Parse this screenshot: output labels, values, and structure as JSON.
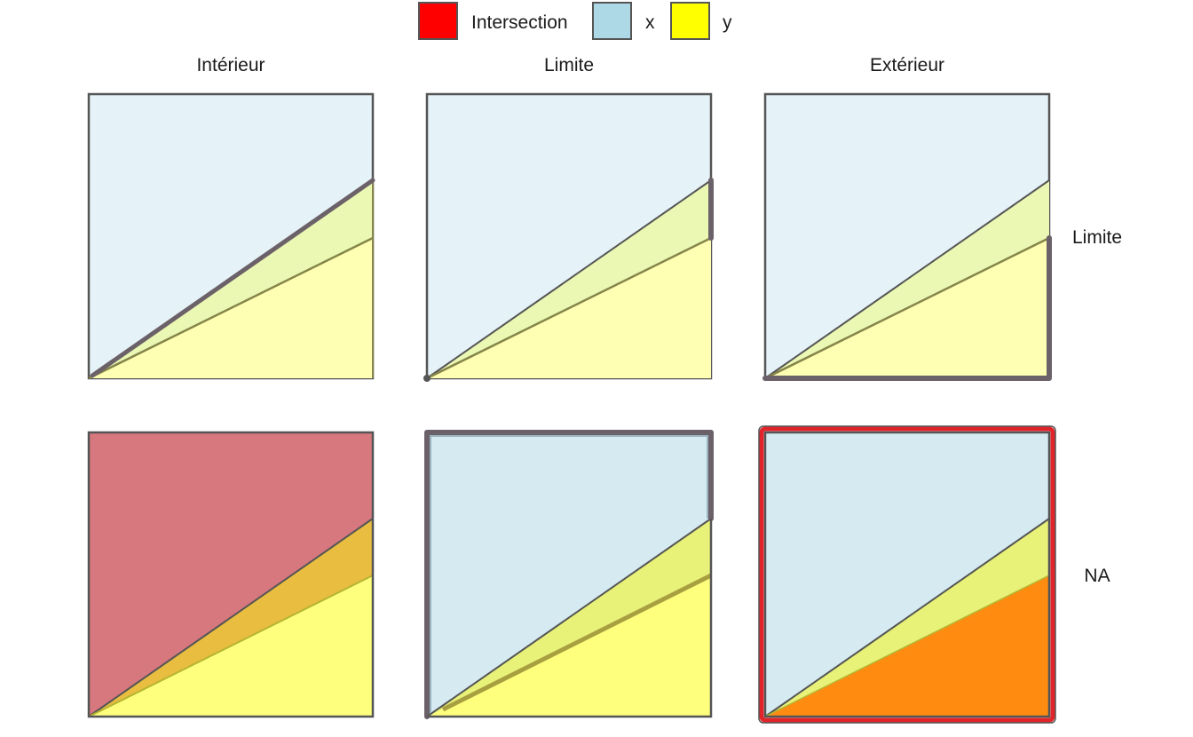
{
  "legend": {
    "items": [
      {
        "label": "Intersection",
        "color": "#FF0000"
      },
      {
        "label": "x",
        "color": "#ADD8E6"
      },
      {
        "label": "y",
        "color": "#FFFF00"
      }
    ]
  },
  "columns": [
    "Intérieur",
    "Limite",
    "Extérieur"
  ],
  "rows": [
    "Limite",
    "NA"
  ],
  "colors": {
    "x": "#ADD8E6",
    "y": "#FFFF00",
    "intersection": "#FF0000",
    "outline": "#555555"
  }
}
